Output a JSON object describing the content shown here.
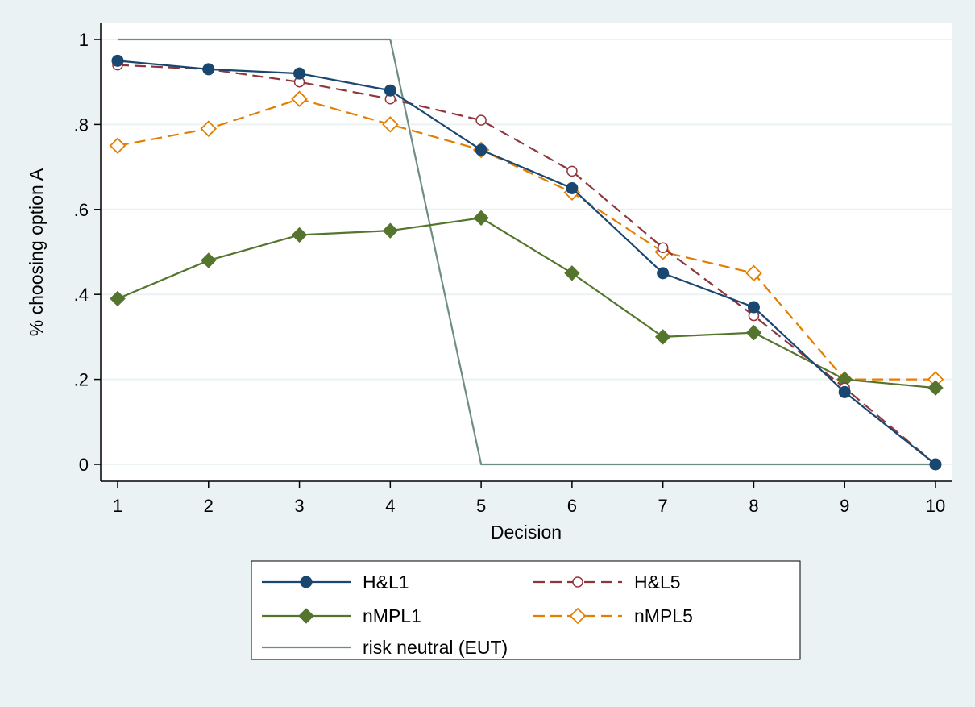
{
  "chart_data": {
    "type": "line",
    "title": "",
    "xlabel": "Decision",
    "ylabel": "% choosing option A",
    "x": [
      1,
      2,
      3,
      4,
      5,
      6,
      7,
      8,
      9,
      10
    ],
    "xlim": [
      1,
      10
    ],
    "ylim": [
      0,
      1
    ],
    "yticks": [
      0,
      0.2,
      0.4,
      0.6,
      0.8,
      1
    ],
    "ytick_labels": [
      "0",
      ".2",
      ".4",
      ".6",
      ".8",
      "1"
    ],
    "xtick_labels": [
      "1",
      "2",
      "3",
      "4",
      "5",
      "6",
      "7",
      "8",
      "9",
      "10"
    ],
    "grid": "horizontal",
    "legend_position": "bottom",
    "series": [
      {
        "name": "H&L1",
        "values": [
          0.95,
          0.93,
          0.92,
          0.88,
          0.74,
          0.65,
          0.45,
          0.37,
          0.17,
          0
        ],
        "color": "#1a476f",
        "dash": "solid",
        "marker": "circle-filled"
      },
      {
        "name": "H&L5",
        "values": [
          0.94,
          0.93,
          0.9,
          0.86,
          0.81,
          0.69,
          0.51,
          0.35,
          0.18,
          0
        ],
        "color": "#90353b",
        "dash": "dashed",
        "marker": "circle-hollow"
      },
      {
        "name": "nMPL1",
        "values": [
          0.39,
          0.48,
          0.54,
          0.55,
          0.58,
          0.45,
          0.3,
          0.31,
          0.2,
          0.18
        ],
        "color": "#55752f",
        "dash": "solid",
        "marker": "diamond-filled"
      },
      {
        "name": "nMPL5",
        "values": [
          0.75,
          0.79,
          0.86,
          0.8,
          0.74,
          0.64,
          0.5,
          0.45,
          0.2,
          0.2
        ],
        "color": "#e37e00",
        "dash": "dashed",
        "marker": "diamond-hollow"
      },
      {
        "name": "risk neutral (EUT)",
        "values": [
          1,
          1,
          1,
          1,
          0,
          0,
          0,
          0,
          0,
          0
        ],
        "color": "#6e8e84",
        "dash": "solid",
        "marker": "none"
      }
    ]
  }
}
